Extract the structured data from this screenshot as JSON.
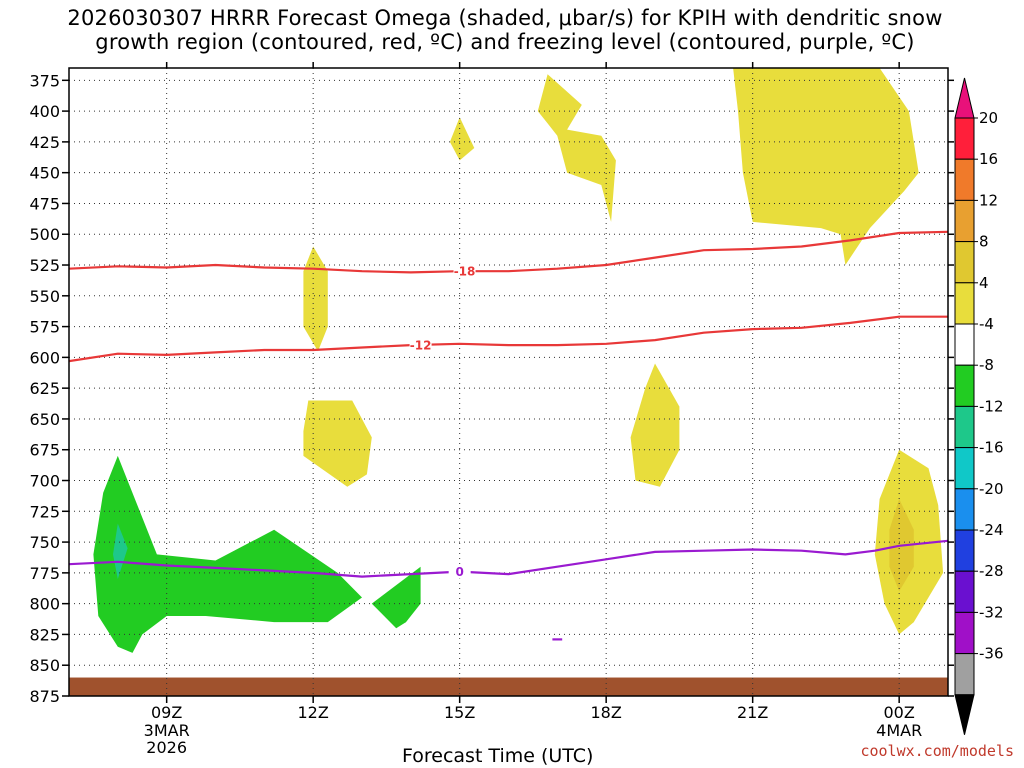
{
  "chart_data": {
    "type": "heatmap",
    "title": "2026030307 HRRR Forecast Omega (shaded, μbar/s) for KPIH with dendritic snow\ngrowth region (contoured, red, ºC) and freezing level (contoured, purple, ºC)",
    "xlabel": "Forecast Time (UTC)",
    "ylabel": "",
    "credit": "coolwx.com/models",
    "y_axis": {
      "scale": "pressure (hPa), inverted",
      "ylim": [
        875,
        365
      ],
      "ticks": [
        375,
        400,
        425,
        450,
        475,
        500,
        525,
        550,
        575,
        600,
        625,
        650,
        675,
        700,
        725,
        750,
        775,
        800,
        825,
        850,
        875
      ]
    },
    "x_axis": {
      "xlim_hours": [
        7,
        25
      ],
      "ticks": [
        {
          "hour": 9,
          "label": "09Z",
          "sub": [
            "3MAR",
            "2026"
          ]
        },
        {
          "hour": 12,
          "label": "12Z",
          "sub": []
        },
        {
          "hour": 15,
          "label": "15Z",
          "sub": []
        },
        {
          "hour": 18,
          "label": "18Z",
          "sub": []
        },
        {
          "hour": 21,
          "label": "21Z",
          "sub": []
        },
        {
          "hour": 24,
          "label": "00Z",
          "sub": [
            "4MAR"
          ]
        }
      ]
    },
    "grid": true,
    "colorbar": {
      "levels": [
        20,
        16,
        12,
        8,
        4,
        -4,
        -8,
        -12,
        -16,
        -20,
        -24,
        -28,
        -32,
        -36
      ],
      "colors": [
        "#ff1f3a",
        "#f07a2a",
        "#e8a030",
        "#e0c830",
        "#e8dd3c",
        "#ffffff",
        "#22cc22",
        "#1ec88a",
        "#10c8c8",
        "#1a8fee",
        "#2040e0",
        "#6a10d0",
        "#a010c8",
        "#a0a0a0",
        "#000000"
      ],
      "top_arrow_color": "#e8117a",
      "bottom_arrow_color": "#000000"
    },
    "omega_regions": [
      {
        "level": 4,
        "points": [
          [
            15.0,
            405
          ],
          [
            15.3,
            430
          ],
          [
            15.0,
            440
          ],
          [
            14.8,
            425
          ]
        ]
      },
      {
        "level": 4,
        "points": [
          [
            16.8,
            370
          ],
          [
            17.5,
            395
          ],
          [
            17.2,
            415
          ],
          [
            17.9,
            420
          ],
          [
            18.2,
            440
          ],
          [
            18.1,
            490
          ],
          [
            17.9,
            460
          ],
          [
            17.2,
            450
          ],
          [
            17.0,
            420
          ],
          [
            16.8,
            410
          ],
          [
            16.6,
            400
          ]
        ]
      },
      {
        "level": 4,
        "points": [
          [
            20.6,
            365
          ],
          [
            23.6,
            365
          ],
          [
            24.2,
            400
          ],
          [
            24.4,
            450
          ],
          [
            24.1,
            465
          ],
          [
            23.4,
            495
          ],
          [
            22.9,
            525
          ],
          [
            22.8,
            500
          ],
          [
            22.4,
            495
          ],
          [
            21.0,
            490
          ],
          [
            20.8,
            450
          ],
          [
            20.7,
            400
          ]
        ]
      },
      {
        "level": 4,
        "points": [
          [
            12.0,
            510
          ],
          [
            12.3,
            530
          ],
          [
            12.3,
            575
          ],
          [
            12.1,
            595
          ],
          [
            11.8,
            575
          ],
          [
            11.8,
            530
          ]
        ]
      },
      {
        "level": 4,
        "points": [
          [
            11.9,
            635
          ],
          [
            12.8,
            635
          ],
          [
            13.2,
            665
          ],
          [
            13.1,
            695
          ],
          [
            12.7,
            705
          ],
          [
            11.8,
            680
          ],
          [
            11.8,
            660
          ]
        ]
      },
      {
        "level": 4,
        "points": [
          [
            19.0,
            605
          ],
          [
            19.5,
            640
          ],
          [
            19.5,
            675
          ],
          [
            19.1,
            705
          ],
          [
            18.6,
            700
          ],
          [
            18.5,
            665
          ],
          [
            18.8,
            625
          ]
        ]
      },
      {
        "level": 4,
        "points": [
          [
            24.0,
            675
          ],
          [
            24.6,
            690
          ],
          [
            24.8,
            720
          ],
          [
            24.9,
            775
          ],
          [
            24.3,
            815
          ],
          [
            24.0,
            825
          ],
          [
            23.7,
            800
          ],
          [
            23.5,
            760
          ],
          [
            23.6,
            715
          ]
        ]
      },
      {
        "level": 8,
        "points": [
          [
            24.0,
            715
          ],
          [
            24.3,
            740
          ],
          [
            24.3,
            770
          ],
          [
            24.0,
            790
          ],
          [
            23.8,
            770
          ],
          [
            23.8,
            740
          ]
        ]
      },
      {
        "level": -4,
        "points": [
          [
            8.0,
            680
          ],
          [
            8.8,
            760
          ],
          [
            10.0,
            765
          ],
          [
            11.2,
            740
          ],
          [
            12.5,
            775
          ],
          [
            13.0,
            795
          ],
          [
            12.3,
            815
          ],
          [
            11.2,
            815
          ],
          [
            9.8,
            810
          ],
          [
            9.0,
            810
          ],
          [
            8.5,
            825
          ],
          [
            8.3,
            840
          ],
          [
            8.0,
            835
          ],
          [
            7.6,
            810
          ],
          [
            7.5,
            760
          ],
          [
            7.7,
            710
          ]
        ]
      },
      {
        "level": -4,
        "points": [
          [
            13.2,
            800
          ],
          [
            14.2,
            770
          ],
          [
            14.2,
            800
          ],
          [
            13.9,
            815
          ],
          [
            13.7,
            820
          ]
        ]
      },
      {
        "level": -8,
        "points": [
          [
            8.0,
            735
          ],
          [
            8.2,
            755
          ],
          [
            8.0,
            780
          ],
          [
            7.9,
            760
          ]
        ]
      }
    ],
    "dendritic_contours": [
      {
        "name": "-18",
        "color": "#e83838",
        "label_at": [
          15.1,
          530
        ],
        "points": [
          [
            7,
            528
          ],
          [
            8,
            526
          ],
          [
            9,
            527
          ],
          [
            10,
            525
          ],
          [
            11,
            527
          ],
          [
            12,
            528
          ],
          [
            13,
            530
          ],
          [
            14,
            531
          ],
          [
            15,
            530
          ],
          [
            16,
            530
          ],
          [
            17,
            528
          ],
          [
            18,
            525
          ],
          [
            19,
            519
          ],
          [
            20,
            513
          ],
          [
            21,
            512
          ],
          [
            22,
            510
          ],
          [
            23,
            505
          ],
          [
            24,
            499
          ],
          [
            25,
            498
          ]
        ]
      },
      {
        "name": "-12",
        "color": "#e83838",
        "label_at": [
          14.2,
          590
        ],
        "points": [
          [
            7,
            603
          ],
          [
            8,
            597
          ],
          [
            9,
            598
          ],
          [
            10,
            596
          ],
          [
            11,
            594
          ],
          [
            12,
            594
          ],
          [
            13,
            592
          ],
          [
            14,
            590
          ],
          [
            15,
            589
          ],
          [
            16,
            590
          ],
          [
            17,
            590
          ],
          [
            18,
            589
          ],
          [
            19,
            586
          ],
          [
            20,
            580
          ],
          [
            21,
            577
          ],
          [
            22,
            576
          ],
          [
            23,
            572
          ],
          [
            24,
            567
          ],
          [
            25,
            567
          ]
        ]
      }
    ],
    "freezing_contours": [
      {
        "name": "0",
        "color": "#9a1ad0",
        "label_at": [
          15.0,
          774
        ],
        "points": [
          [
            7,
            768
          ],
          [
            8,
            766
          ],
          [
            9,
            769
          ],
          [
            10,
            771
          ],
          [
            11,
            773
          ],
          [
            12,
            775
          ],
          [
            13,
            778
          ],
          [
            14,
            776
          ],
          [
            15,
            774
          ],
          [
            16,
            776
          ],
          [
            17,
            770
          ],
          [
            18,
            764
          ],
          [
            19,
            758
          ],
          [
            20,
            757
          ],
          [
            21,
            756
          ],
          [
            22,
            757
          ],
          [
            22.9,
            760
          ],
          [
            23.5,
            757
          ],
          [
            24,
            753
          ],
          [
            25,
            749
          ]
        ]
      },
      {
        "name": "",
        "color": "#9a1ad0",
        "label_at": null,
        "points": [
          [
            16.9,
            829
          ],
          [
            17.1,
            829
          ]
        ]
      }
    ],
    "terrain": {
      "color": "#a0522d",
      "top_hpa": 860
    }
  }
}
